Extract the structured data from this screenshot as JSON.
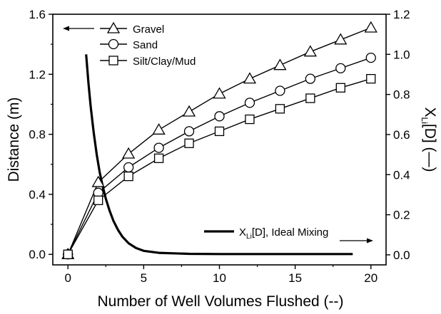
{
  "chart_data": {
    "type": "line",
    "title": "",
    "xlabel": "Number  of Well Volumes Flushed (--)",
    "ylabel_left": "Distance (m)",
    "ylabel_right": "X",
    "ylabel_right_sub": "Li",
    "ylabel_right_tail": "[D] (—)",
    "xlim": [
      -1,
      21
    ],
    "ylim_left": [
      -0.07,
      1.6
    ],
    "ylim_right": [
      -0.05,
      1.2
    ],
    "x_ticks": [
      0,
      5,
      10,
      15,
      20
    ],
    "y_ticks_left": [
      0.0,
      0.4,
      0.8,
      1.2,
      1.6
    ],
    "y_ticks_right": [
      0.0,
      0.2,
      0.4,
      0.6,
      0.8,
      1.0,
      1.2
    ],
    "y_tick_labels_left": [
      "0.0",
      "0.4",
      "0.8",
      "1.2",
      "1.6"
    ],
    "y_tick_labels_right": [
      "0.0",
      "0.2",
      "0.4",
      "0.6",
      "0.8",
      "1.0",
      "1.2"
    ],
    "grid": false,
    "legend_position": "top-left",
    "series": [
      {
        "name": "Gravel",
        "axis": "left",
        "marker": "triangle",
        "x": [
          0,
          2,
          4,
          6,
          8,
          10,
          12,
          14,
          16,
          18,
          20
        ],
        "y": [
          0.0,
          0.48,
          0.67,
          0.83,
          0.95,
          1.07,
          1.17,
          1.26,
          1.35,
          1.43,
          1.51
        ]
      },
      {
        "name": "Sand",
        "axis": "left",
        "marker": "circle",
        "x": [
          0,
          2,
          4,
          6,
          8,
          10,
          12,
          14,
          16,
          18,
          20
        ],
        "y": [
          0.0,
          0.41,
          0.58,
          0.71,
          0.82,
          0.92,
          1.01,
          1.09,
          1.17,
          1.24,
          1.31
        ]
      },
      {
        "name": "Silt/Clay/Mud",
        "axis": "left",
        "marker": "square",
        "x": [
          0,
          2,
          4,
          6,
          8,
          10,
          12,
          14,
          16,
          18,
          20
        ],
        "y": [
          0.0,
          0.36,
          0.52,
          0.64,
          0.74,
          0.82,
          0.9,
          0.97,
          1.04,
          1.11,
          1.17
        ]
      },
      {
        "name": "X",
        "name_sub": "Li",
        "name_tail": "[D], Ideal Mixing",
        "axis": "right",
        "marker": "none",
        "x": [
          1.2,
          1.35,
          1.5,
          1.7,
          1.9,
          2.1,
          2.3,
          2.5,
          2.75,
          3.0,
          3.3,
          3.6,
          4.0,
          4.5,
          5.0,
          6.0,
          8.0,
          10.0,
          12.0,
          14.0,
          16.0,
          18.0,
          18.8
        ],
        "y": [
          1.0,
          0.86,
          0.74,
          0.61,
          0.5,
          0.41,
          0.34,
          0.28,
          0.22,
          0.17,
          0.125,
          0.09,
          0.058,
          0.034,
          0.02,
          0.01,
          0.005,
          0.004,
          0.004,
          0.004,
          0.004,
          0.004,
          0.004
        ]
      }
    ]
  }
}
